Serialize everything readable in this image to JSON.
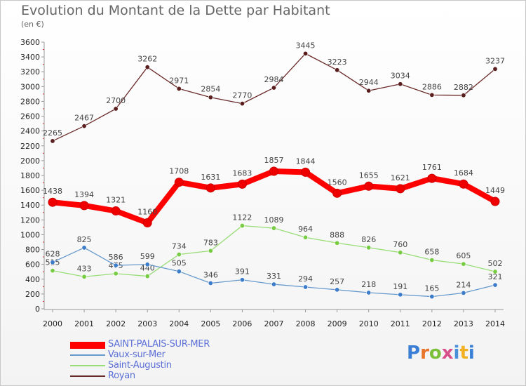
{
  "header": {
    "title": "Evolution du Montant de la Dette par Habitant",
    "subtitle": "(en €)"
  },
  "logo": {
    "text": "Proxiti"
  },
  "chart_data": {
    "type": "line",
    "categories": [
      "2000",
      "2001",
      "2002",
      "2003",
      "2004",
      "2005",
      "2006",
      "2007",
      "2008",
      "2009",
      "2010",
      "2011",
      "2012",
      "2013",
      "2014"
    ],
    "ylim": [
      0,
      3600
    ],
    "yticks": [
      0,
      200,
      400,
      600,
      800,
      1000,
      1200,
      1400,
      1600,
      1800,
      2000,
      2200,
      2400,
      2600,
      2800,
      3000,
      3200,
      3400,
      3600
    ],
    "grid": false,
    "legend_position": "bottom-left",
    "series": [
      {
        "name": "Royan",
        "color": "#6b2a2a",
        "marker": "#5a1e1e",
        "values": [
          2265,
          2467,
          2700,
          3262,
          2971,
          2854,
          2770,
          2984,
          3445,
          3223,
          2944,
          3034,
          2886,
          2882,
          3237
        ]
      },
      {
        "name": "Saint-Augustin",
        "color": "#99dd77",
        "marker": "#77cc44",
        "values": [
          515,
          433,
          475,
          440,
          734,
          783,
          1122,
          1089,
          964,
          888,
          826,
          760,
          658,
          605,
          502
        ]
      },
      {
        "name": "Vaux-sur-Mer",
        "color": "#6699cc",
        "marker": "#3d7cc9",
        "values": [
          628,
          825,
          586,
          599,
          505,
          346,
          391,
          331,
          294,
          257,
          218,
          191,
          165,
          214,
          321
        ]
      },
      {
        "name": "SAINT-PALAIS-SUR-MER",
        "color": "#ff0000",
        "marker": "#ee0000",
        "values": [
          1438,
          1394,
          1321,
          1160,
          1708,
          1631,
          1683,
          1857,
          1844,
          1560,
          1655,
          1621,
          1761,
          1684,
          1449
        ]
      }
    ]
  },
  "legend": {
    "items": [
      {
        "label": "SAINT-PALAIS-SUR-MER",
        "color": "#ff0000"
      },
      {
        "label": "Vaux-sur-Mer",
        "color": "#6699cc"
      },
      {
        "label": "Saint-Augustin",
        "color": "#99dd77"
      },
      {
        "label": "Royan",
        "color": "#6b2a2a"
      }
    ]
  },
  "colors": {
    "axis": "#999999",
    "text": "#666666",
    "legend_text": "#5b6fd6"
  }
}
